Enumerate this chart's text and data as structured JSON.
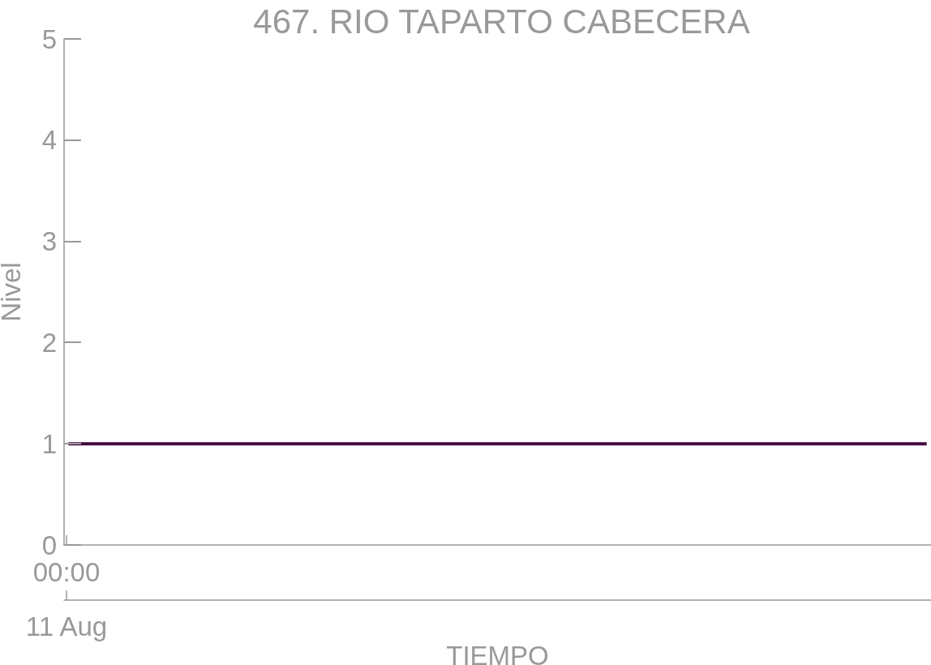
{
  "chart_data": {
    "type": "line",
    "title": "467. RIO TAPARTO CABECERA",
    "xlabel": "TIEMPO",
    "ylabel": "Nivel",
    "categories": [
      null,
      null,
      null,
      null,
      null,
      null,
      null,
      null,
      null,
      null,
      null,
      null,
      null,
      null,
      null,
      null,
      null,
      null,
      null,
      null,
      null,
      null,
      null,
      null,
      null,
      null,
      null,
      null,
      null,
      null,
      null,
      null,
      null,
      null,
      null,
      null,
      null,
      null,
      null,
      null,
      null,
      null,
      null,
      null,
      null,
      null,
      null,
      null,
      null,
      null,
      null,
      null,
      null,
      null,
      null,
      null,
      null,
      null,
      null,
      null,
      null,
      null,
      null,
      null,
      null,
      null,
      null,
      null,
      null,
      null,
      null,
      null,
      null,
      null,
      null,
      null,
      null,
      null,
      null,
      null,
      null,
      null,
      null,
      null,
      null,
      null,
      null,
      null,
      null,
      null,
      null,
      null,
      null,
      null,
      null,
      null,
      null,
      null,
      null,
      null
    ],
    "series": [
      {
        "color": "#44093f",
        "values": [
          1,
          1,
          1,
          1,
          1,
          1,
          1,
          1,
          1,
          1,
          1,
          1,
          1,
          1,
          1,
          1,
          1,
          1,
          1,
          1,
          1,
          1,
          1,
          1,
          1,
          1,
          1,
          1,
          1,
          1,
          1,
          1,
          1,
          1,
          1,
          1,
          1,
          1,
          1,
          1,
          1,
          1,
          1,
          1,
          1,
          1,
          1,
          1,
          1,
          1,
          1,
          1,
          1,
          1,
          1,
          1,
          1,
          1,
          1,
          1,
          1,
          1,
          1,
          1,
          1,
          1,
          1,
          1,
          1,
          1,
          1,
          1,
          1,
          1,
          1,
          1,
          1,
          1,
          1,
          1,
          1,
          1,
          1,
          1,
          1,
          1,
          1,
          1,
          1,
          1,
          1,
          1,
          1,
          1,
          1,
          1,
          1,
          1,
          1,
          1
        ]
      }
    ],
    "ylim": [
      0,
      5
    ],
    "yticks": [
      0,
      1,
      2,
      3,
      4,
      5
    ],
    "marker": "none",
    "line_style": "solid",
    "annotations": [
      "00:00\n11 Aug"
    ]
  }
}
